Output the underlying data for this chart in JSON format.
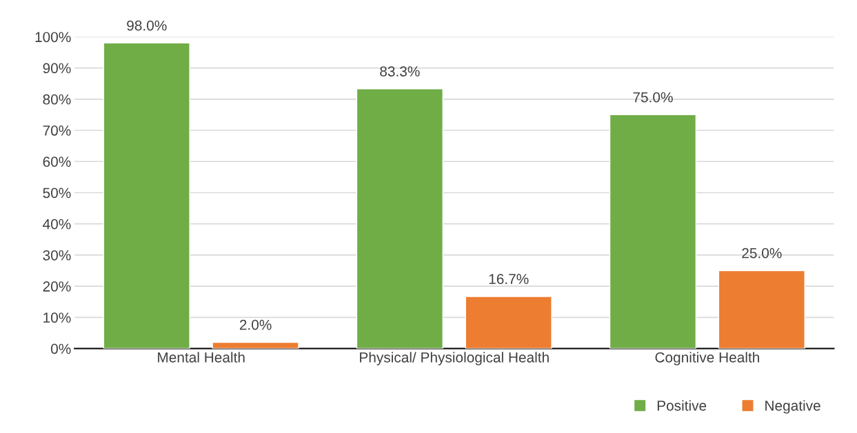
{
  "chart_data": {
    "type": "bar",
    "categories": [
      "Mental Health",
      "Physical/ Physiological Health",
      "Cognitive Health"
    ],
    "series": [
      {
        "name": "Positive",
        "color": "#70ad47",
        "values": [
          98.0,
          83.3,
          75.0
        ],
        "value_labels": [
          "98.0%",
          "83.3%",
          "75.0%"
        ]
      },
      {
        "name": "Negative",
        "color": "#ed7d31",
        "values": [
          2.0,
          16.7,
          25.0
        ],
        "value_labels": [
          "2.0%",
          "16.7%",
          "25.0%"
        ]
      }
    ],
    "ylim": [
      0,
      100
    ],
    "yticks": [
      {
        "value": 0,
        "label": "0%"
      },
      {
        "value": 10,
        "label": "10%"
      },
      {
        "value": 20,
        "label": "20%"
      },
      {
        "value": 30,
        "label": "30%"
      },
      {
        "value": 40,
        "label": "40%"
      },
      {
        "value": 50,
        "label": "50%"
      },
      {
        "value": 60,
        "label": "60%"
      },
      {
        "value": 70,
        "label": "70%"
      },
      {
        "value": 80,
        "label": "80%"
      },
      {
        "value": 90,
        "label": "90%"
      },
      {
        "value": 100,
        "label": "100%"
      }
    ],
    "grid": "y",
    "legend": "bottom right"
  }
}
